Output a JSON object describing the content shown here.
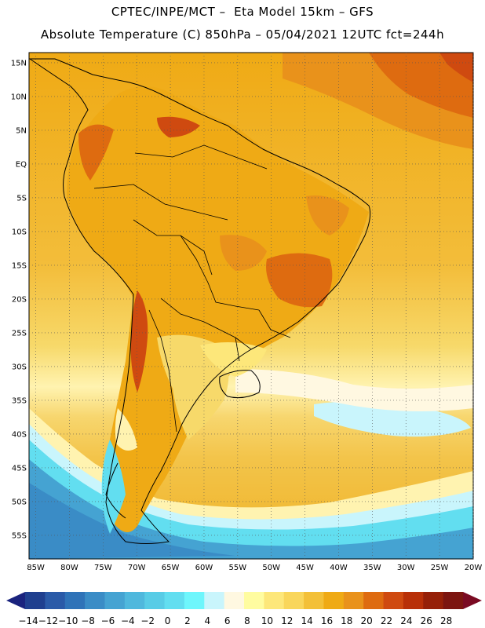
{
  "header": {
    "line1": "CPTEC/INPE/MCT –  Eta Model 15km – GFS",
    "line2": "Absolute Temperature (C) 850hPa – 05/04/2021 12UTC fct=244h"
  },
  "map": {
    "lat_labels": [
      "15N",
      "10N",
      "5N",
      "EQ",
      "5S",
      "10S",
      "15S",
      "20S",
      "25S",
      "30S",
      "35S",
      "40S",
      "45S",
      "50S",
      "55S"
    ],
    "lon_labels": [
      "85W",
      "80W",
      "75W",
      "70W",
      "65W",
      "60W",
      "55W",
      "50W",
      "45W",
      "40W",
      "35W",
      "30W",
      "25W",
      "20W"
    ],
    "extent": {
      "lon_west": -86,
      "lon_east": -20,
      "lat_north": 16.5,
      "lat_south": -58.5
    },
    "grid": "dotted"
  },
  "colorbar": {
    "labels": [
      "-14",
      "-12",
      "-10",
      "-8",
      "-6",
      "-4",
      "-2",
      "0",
      "2",
      "4",
      "6",
      "8",
      "10",
      "12",
      "14",
      "16",
      "18",
      "20",
      "22",
      "24",
      "26",
      "28"
    ],
    "colors": [
      "#1f3f8f",
      "#2a5aa8",
      "#2f73b8",
      "#3a8cc6",
      "#45a3d2",
      "#4fb8dd",
      "#58cce6",
      "#62def0",
      "#6ef6fc",
      "#c9f5fc",
      "#fff8e1",
      "#fffca0",
      "#fde77a",
      "#f9d65b",
      "#f3c038",
      "#efaa15",
      "#e9921b",
      "#de6b10",
      "#cf4a10",
      "#b83008",
      "#962008",
      "#7c1510"
    ],
    "end_left_color": "#1a237e",
    "end_right_color": "#7a0a22"
  }
}
